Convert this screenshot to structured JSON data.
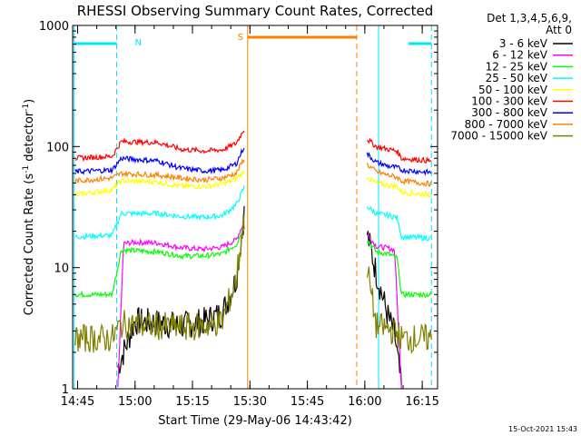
{
  "chart_data": {
    "type": "line",
    "title": "RHESSI Observing Summary Count Rates, Corrected",
    "xlabel": "Start Time (29-May-06 14:43:42)",
    "ylabel": "Corrected Count Rate (s",
    "ylabel_sup": "-1",
    "ylabel_tail": " detector",
    "ylabel_close": ")",
    "x_range_min": [
      14.7283,
      16.3167
    ],
    "ylim": [
      1,
      1000
    ],
    "yscale": "log",
    "x_ticks": [
      {
        "t": 14.75,
        "label": "14:45"
      },
      {
        "t": 15.0,
        "label": "15:00"
      },
      {
        "t": 15.25,
        "label": "15:15"
      },
      {
        "t": 15.5,
        "label": "15:30"
      },
      {
        "t": 15.75,
        "label": "15:45"
      },
      {
        "t": 16.0,
        "label": "16:00"
      },
      {
        "t": 16.25,
        "label": "16:15"
      }
    ],
    "y_ticks": [
      {
        "v": 1,
        "label": "1"
      },
      {
        "v": 10,
        "label": "10"
      },
      {
        "v": 100,
        "label": "100"
      },
      {
        "v": 1000,
        "label": "1000"
      }
    ],
    "legend": {
      "position": "top-right",
      "header1": "Det 1,3,4,5,6,9,",
      "header2": "Att 0"
    },
    "series": [
      {
        "name": "3 - 6 keV",
        "color": "#000000",
        "points": [
          [
            14.925,
            1.5
          ],
          [
            15.0,
            3.6
          ],
          [
            15.1,
            3.5
          ],
          [
            15.2,
            3.3
          ],
          [
            15.3,
            3.6
          ],
          [
            15.38,
            4.2
          ],
          [
            15.44,
            8
          ],
          [
            15.475,
            28
          ]
        ],
        "points2": [
          [
            16.01,
            19
          ],
          [
            16.05,
            9
          ],
          [
            16.1,
            4
          ],
          [
            16.13,
            2.8
          ],
          [
            16.16,
            1.0
          ]
        ]
      },
      {
        "name": "6 - 12 keV",
        "color": "#ff00ff",
        "points": [
          [
            14.925,
            1.0
          ],
          [
            14.95,
            15.8
          ],
          [
            15.0,
            16.2
          ],
          [
            15.1,
            16.0
          ],
          [
            15.2,
            14.6
          ],
          [
            15.3,
            14.2
          ],
          [
            15.38,
            14.8
          ],
          [
            15.44,
            17
          ],
          [
            15.475,
            24
          ]
        ],
        "points2": [
          [
            16.01,
            19
          ],
          [
            16.05,
            15
          ],
          [
            16.1,
            14.5
          ],
          [
            16.13,
            14
          ],
          [
            16.16,
            1.0
          ]
        ]
      },
      {
        "name": "12 - 25 keV",
        "color": "#00ff00",
        "points": [
          [
            14.74,
            6
          ],
          [
            14.9,
            6
          ],
          [
            14.94,
            14
          ],
          [
            15.1,
            13.5
          ],
          [
            15.2,
            12.5
          ],
          [
            15.3,
            12.5
          ],
          [
            15.38,
            13
          ],
          [
            15.44,
            15.5
          ],
          [
            15.475,
            22
          ]
        ],
        "points2": [
          [
            16.01,
            17
          ],
          [
            16.05,
            13.5
          ],
          [
            16.1,
            13
          ],
          [
            16.14,
            12
          ],
          [
            16.16,
            6
          ],
          [
            16.29,
            6
          ]
        ]
      },
      {
        "name": "25 - 50 keV",
        "color": "#00ffff",
        "points": [
          [
            14.74,
            18
          ],
          [
            14.9,
            18.5
          ],
          [
            14.94,
            28
          ],
          [
            15.1,
            28
          ],
          [
            15.2,
            26.5
          ],
          [
            15.3,
            26
          ],
          [
            15.38,
            27
          ],
          [
            15.44,
            33
          ],
          [
            15.475,
            46
          ]
        ],
        "points2": [
          [
            16.01,
            32
          ],
          [
            16.05,
            28
          ],
          [
            16.1,
            27
          ],
          [
            16.14,
            26
          ],
          [
            16.16,
            18
          ],
          [
            16.29,
            17.5
          ]
        ]
      },
      {
        "name": "50 - 100 keV",
        "color": "#ffff00",
        "points": [
          [
            14.74,
            40
          ],
          [
            14.9,
            44
          ],
          [
            14.94,
            52
          ],
          [
            15.1,
            51
          ],
          [
            15.2,
            47
          ],
          [
            15.3,
            47
          ],
          [
            15.38,
            49
          ],
          [
            15.44,
            54
          ],
          [
            15.475,
            62
          ]
        ],
        "points2": [
          [
            16.01,
            55
          ],
          [
            16.05,
            50
          ],
          [
            16.1,
            48
          ],
          [
            16.14,
            47
          ],
          [
            16.16,
            42
          ],
          [
            16.29,
            40
          ]
        ]
      },
      {
        "name": "100 - 300 keV",
        "color": "#ff0000",
        "points": [
          [
            14.74,
            80
          ],
          [
            14.9,
            83
          ],
          [
            14.94,
            110
          ],
          [
            15.1,
            108
          ],
          [
            15.2,
            95
          ],
          [
            15.3,
            92
          ],
          [
            15.38,
            94
          ],
          [
            15.44,
            106
          ],
          [
            15.475,
            140
          ]
        ],
        "points2": [
          [
            16.01,
            115
          ],
          [
            16.05,
            100
          ],
          [
            16.1,
            95
          ],
          [
            16.14,
            92
          ],
          [
            16.16,
            80
          ],
          [
            16.29,
            76
          ]
        ]
      },
      {
        "name": "300 - 800 keV",
        "color": "#0000ff",
        "points": [
          [
            14.74,
            62
          ],
          [
            14.9,
            64
          ],
          [
            14.94,
            80
          ],
          [
            15.1,
            76
          ],
          [
            15.2,
            66
          ],
          [
            15.3,
            63
          ],
          [
            15.38,
            64
          ],
          [
            15.44,
            72
          ],
          [
            15.475,
            100
          ]
        ],
        "points2": [
          [
            16.01,
            87
          ],
          [
            16.05,
            74
          ],
          [
            16.1,
            69
          ],
          [
            16.14,
            67
          ],
          [
            16.16,
            64
          ],
          [
            16.29,
            61
          ]
        ]
      },
      {
        "name": "800 - 7000 keV",
        "color": "#ff8000",
        "points": [
          [
            14.74,
            52
          ],
          [
            14.9,
            55
          ],
          [
            14.94,
            60
          ],
          [
            15.1,
            58
          ],
          [
            15.2,
            55
          ],
          [
            15.3,
            53
          ],
          [
            15.38,
            55
          ],
          [
            15.44,
            60
          ],
          [
            15.475,
            80
          ]
        ],
        "points2": [
          [
            16.01,
            71
          ],
          [
            16.05,
            62
          ],
          [
            16.1,
            58
          ],
          [
            16.14,
            56
          ],
          [
            16.16,
            52
          ],
          [
            16.29,
            49
          ]
        ]
      },
      {
        "name": "7000 - 15000 keV",
        "color": "#808000",
        "points": [
          [
            14.74,
            2.6
          ],
          [
            14.9,
            2.6
          ],
          [
            14.94,
            3.4
          ],
          [
            15.1,
            3.3
          ],
          [
            15.2,
            3.2
          ],
          [
            15.3,
            3.3
          ],
          [
            15.38,
            3.6
          ],
          [
            15.44,
            8
          ],
          [
            15.475,
            26
          ]
        ],
        "points2": [
          [
            16.01,
            10
          ],
          [
            16.05,
            3.3
          ],
          [
            16.1,
            3.1
          ],
          [
            16.14,
            2.9
          ],
          [
            16.16,
            2.6
          ],
          [
            16.29,
            2.6
          ]
        ]
      }
    ],
    "annotations": {
      "night_label": "N",
      "saa_label": "S",
      "cyan_bars": [
        [
          14.735,
          14.92
        ],
        [
          16.19,
          16.29
        ]
      ],
      "cyan_dashed": [
        14.92,
        16.29
      ],
      "cyan_solid": [
        14.735,
        16.06
      ],
      "saa_bar": [
        15.49,
        15.965
      ],
      "saa_solid": 15.49,
      "saa_dashed": 15.965
    },
    "footer_timestamp": "15-Oct-2021 15:43"
  }
}
